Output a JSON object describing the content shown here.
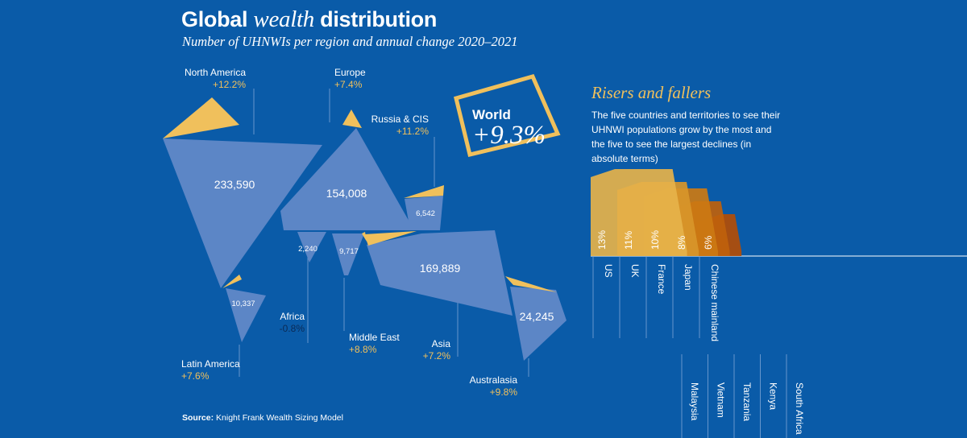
{
  "header": {
    "title_part1": "Global ",
    "title_em": "wealth",
    "title_part2": " distribution",
    "subtitle": "Number of UHNWIs per region and annual change 2020–2021"
  },
  "source": {
    "label": "Source:",
    "text": "Knight Frank Wealth Sizing Model"
  },
  "world_badge": {
    "label": "World",
    "value": "+9.3%"
  },
  "risers": {
    "title": "Risers and fallers",
    "description": "The five countries and territories to see their UHNWI populations grow by the most and the five to see the largest declines (in absolute terms)"
  },
  "colors": {
    "background": "#0a5ba8",
    "region": "#5c86c6",
    "accent": "#f0c05c",
    "negative": "#0b2a55"
  },
  "chart_data": [
    {
      "type": "table",
      "description": "Number of UHNWIs per region and annual change 2020–2021",
      "regions": [
        {
          "name": "North America",
          "uhnwi": "233,590",
          "change": "+12.2%"
        },
        {
          "name": "Europe",
          "uhnwi": "154,008",
          "change": "+7.4%"
        },
        {
          "name": "Russia & CIS",
          "uhnwi": "6,542",
          "change": "+11.2%"
        },
        {
          "name": "Latin America",
          "uhnwi": "10,337",
          "change": "+7.6%"
        },
        {
          "name": "Africa",
          "uhnwi": "2,240",
          "change": "-0.8%"
        },
        {
          "name": "Middle East",
          "uhnwi": "9,717",
          "change": "+8.8%"
        },
        {
          "name": "Asia",
          "uhnwi": "169,889",
          "change": "+7.2%"
        },
        {
          "name": "Australasia",
          "uhnwi": "24,245",
          "change": "+9.8%"
        }
      ]
    },
    {
      "type": "bar",
      "title": "Risers and fallers",
      "risers": [
        {
          "country": "US",
          "value": 13,
          "label": "13%"
        },
        {
          "country": "UK",
          "value": 11,
          "label": "11%"
        },
        {
          "country": "France",
          "value": 10,
          "label": "10%"
        },
        {
          "country": "Japan",
          "value": 8,
          "label": "8%"
        },
        {
          "country": "Chinese mainland",
          "value": 6,
          "label": "6%"
        }
      ],
      "fallers": [
        {
          "country": "Malaysia"
        },
        {
          "country": "Vietnam"
        },
        {
          "country": "Tanzania"
        },
        {
          "country": "Kenya"
        },
        {
          "country": "South Africa"
        }
      ]
    }
  ]
}
